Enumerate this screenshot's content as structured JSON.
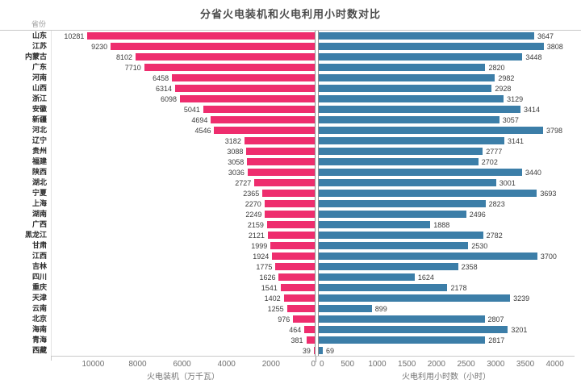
{
  "title": "分省火电装机和火电利用小时数对比",
  "row_header": "省份",
  "chart_data": {
    "type": "bar",
    "orientation": "horizontal-diverging",
    "grid": false,
    "legend": false,
    "title": "分省火电装机和火电利用小时数对比",
    "categories_label": "省份",
    "categories": [
      "山东",
      "江苏",
      "内蒙古",
      "广东",
      "河南",
      "山西",
      "浙江",
      "安徽",
      "新疆",
      "河北",
      "辽宁",
      "贵州",
      "福建",
      "陕西",
      "湖北",
      "宁夏",
      "上海",
      "湖南",
      "广西",
      "黑龙江",
      "甘肃",
      "江西",
      "吉林",
      "四川",
      "重庆",
      "天津",
      "云南",
      "北京",
      "海南",
      "青海",
      "西藏"
    ],
    "series": [
      {
        "name": "火电装机",
        "unit": "万千瓦",
        "axis_label": "火电装机（万千瓦）",
        "side": "left",
        "color": "#ee2d6e",
        "axis_ticks": [
          10000,
          8000,
          6000,
          4000,
          2000,
          0
        ],
        "axis_max": 11900,
        "values": [
          10281,
          9230,
          8102,
          7710,
          6458,
          6314,
          6098,
          5041,
          4694,
          4546,
          3182,
          3088,
          3058,
          3036,
          2727,
          2365,
          2270,
          2249,
          2159,
          2121,
          1999,
          1924,
          1775,
          1626,
          1541,
          1402,
          1255,
          976,
          464,
          381,
          39
        ]
      },
      {
        "name": "火电利用小时数",
        "unit": "小时",
        "axis_label": "火电利用小时数（小时）",
        "side": "right",
        "color": "#3c7ea8",
        "axis_ticks": [
          0,
          500,
          1000,
          1500,
          2000,
          2500,
          3000,
          3500,
          4000
        ],
        "axis_max": 4330,
        "values": [
          3647,
          3808,
          3448,
          2820,
          2982,
          2928,
          3129,
          3414,
          3057,
          3798,
          3141,
          2777,
          2702,
          3440,
          3001,
          3693,
          2823,
          2496,
          1888,
          2782,
          2530,
          3700,
          2358,
          1624,
          2178,
          3239,
          899,
          2807,
          3201,
          2817,
          69
        ]
      }
    ]
  }
}
